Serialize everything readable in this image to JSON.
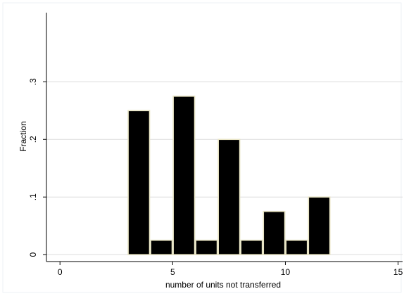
{
  "chart_data": {
    "type": "bar",
    "title": "",
    "xlabel": "number of units not transferred",
    "ylabel": "Fraction",
    "xlim": [
      -0.6,
      15.2
    ],
    "ylim": [
      -0.012,
      0.42
    ],
    "x_ticks": [
      0,
      5,
      10,
      15
    ],
    "x_tick_labels": [
      "0",
      "5",
      "10",
      "15"
    ],
    "y_ticks": [
      0,
      0.1,
      0.2,
      0.3
    ],
    "y_tick_labels": [
      "0",
      ".1",
      ".2",
      ".3"
    ],
    "grid": true,
    "bin_width": 1,
    "bins": [
      {
        "x": 3,
        "value": 0.25
      },
      {
        "x": 4,
        "value": 0.025
      },
      {
        "x": 5,
        "value": 0.275
      },
      {
        "x": 6,
        "value": 0.025
      },
      {
        "x": 7,
        "value": 0.2
      },
      {
        "x": 8,
        "value": 0.025
      },
      {
        "x": 9,
        "value": 0.075
      },
      {
        "x": 10,
        "value": 0.025
      },
      {
        "x": 11,
        "value": 0.1
      }
    ],
    "colors": {
      "bar_fill": "#000000",
      "bar_stroke": "#e8e4c4",
      "grid": "#dcdcdc",
      "axis": "#000000"
    }
  }
}
